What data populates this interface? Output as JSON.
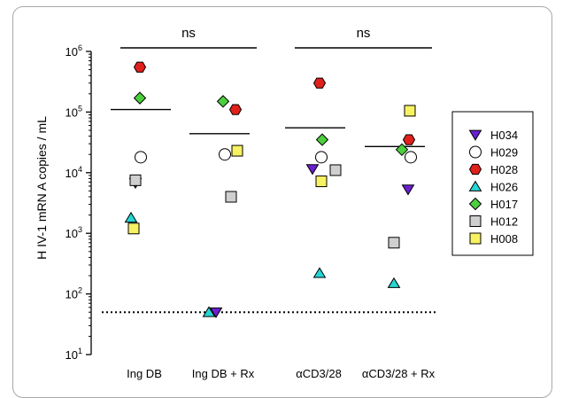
{
  "chart_data": {
    "type": "scatter",
    "ylabel": "H IV-1 mRN A copies / mL",
    "yscale": "log",
    "ylim": [
      10,
      1000000
    ],
    "yticks": [
      {
        "value": 10,
        "base": "10",
        "exp": "1"
      },
      {
        "value": 100,
        "base": "10",
        "exp": "2"
      },
      {
        "value": 1000,
        "base": "10",
        "exp": "3"
      },
      {
        "value": 10000,
        "base": "10",
        "exp": "4"
      },
      {
        "value": 100000,
        "base": "10",
        "exp": "5"
      },
      {
        "value": 1000000,
        "base": "10",
        "exp": "6"
      }
    ],
    "categories": [
      "Ing DB",
      "Ing DB + Rx",
      "αCD3/28",
      "αCD3/28 + Rx"
    ],
    "detection_limit": 50,
    "medians": [
      110000,
      44000,
      55000,
      27000
    ],
    "significance": [
      {
        "label": "ns",
        "from": 0,
        "to": 1
      },
      {
        "label": "ns",
        "from": 2,
        "to": 3
      }
    ],
    "legend_position": "right",
    "series": [
      {
        "name": "H034",
        "marker": "triangle-down",
        "color": "#6a1fd0",
        "values": [
          6800,
          50,
          11500,
          5300
        ]
      },
      {
        "name": "H029",
        "marker": "circle",
        "color": "#ffffff",
        "values": [
          18000,
          20000,
          18000,
          18000
        ]
      },
      {
        "name": "H028",
        "marker": "hexagon",
        "color": "#e0201b",
        "values": [
          550000,
          110000,
          300000,
          35000
        ]
      },
      {
        "name": "H026",
        "marker": "triangle-up",
        "color": "#25d5d5",
        "values": [
          1800,
          50,
          220,
          150
        ]
      },
      {
        "name": "H017",
        "marker": "diamond",
        "color": "#4ccf3c",
        "values": [
          170000,
          150000,
          35000,
          24000
        ]
      },
      {
        "name": "H012",
        "marker": "square",
        "color": "#cfcfcf",
        "values": [
          7500,
          4000,
          11000,
          700
        ]
      },
      {
        "name": "H008",
        "marker": "square",
        "color": "#f7f261",
        "values": [
          1200,
          23000,
          7200,
          105000
        ]
      }
    ]
  }
}
